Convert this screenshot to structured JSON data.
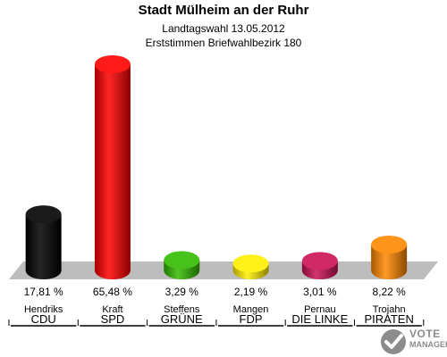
{
  "chart_data": {
    "type": "bar",
    "title": "Stadt Mülheim an der Ruhr",
    "subtitle": "Landtagswahl 13.05.2012",
    "subtitle2": "Erststimmen Briefwahlbezirk 180",
    "ylim": [
      0,
      65.48
    ],
    "bars": [
      {
        "candidate": "Hendriks",
        "party": "CDU",
        "value": 17.81,
        "label": "17,81 %",
        "color": "#000000"
      },
      {
        "candidate": "Kraft",
        "party": "SPD",
        "value": 65.48,
        "label": "65,48 %",
        "color": "#ff0000"
      },
      {
        "candidate": "Steffens",
        "party": "GRÜNE",
        "value": 3.29,
        "label": "3,29 %",
        "color": "#33bb00"
      },
      {
        "candidate": "Mangen",
        "party": "FDP",
        "value": 2.19,
        "label": "2,19 %",
        "color": "#ffee00"
      },
      {
        "candidate": "Pernau",
        "party": "DIE LINKE",
        "value": 3.01,
        "label": "3,01 %",
        "color": "#cc1155"
      },
      {
        "candidate": "Trojahn",
        "party": "PIRATEN",
        "value": 8.22,
        "label": "8,22 %",
        "color": "#ff8800"
      }
    ]
  },
  "logo": {
    "line1": "VOTE",
    "line2": "MANAGER"
  }
}
